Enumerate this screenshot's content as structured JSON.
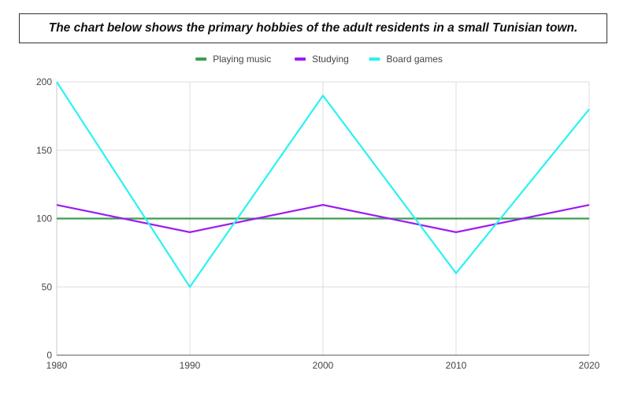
{
  "chart_data": {
    "type": "line",
    "title": "The chart below shows the primary hobbies of the adult residents in a small Tunisian town.",
    "xlabel": "",
    "ylabel": "",
    "x": [
      "1980",
      "1990",
      "2000",
      "2010",
      "2020"
    ],
    "ylim": [
      0,
      200
    ],
    "yticks": [
      "0",
      "50",
      "100",
      "150",
      "200"
    ],
    "grid": true,
    "legend_position": "top-center",
    "series": [
      {
        "name": "Playing music",
        "color": "#3d9e52",
        "values": [
          100,
          100,
          100,
          100,
          100
        ]
      },
      {
        "name": "Studying",
        "color": "#9b1df0",
        "values": [
          110,
          90,
          110,
          90,
          110
        ]
      },
      {
        "name": "Board games",
        "color": "#2cf2f2",
        "values": [
          200,
          50,
          190,
          60,
          180
        ]
      }
    ]
  }
}
